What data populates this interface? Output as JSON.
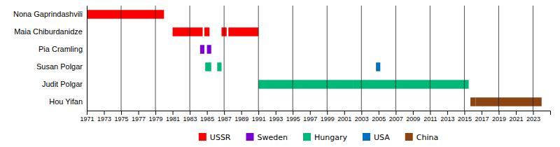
{
  "chart_data": {
    "type": "gantt",
    "orientation": "horizontal",
    "categories": [
      "Nona Gaprindashvili",
      "Maia Chiburdanidze",
      "Pia Cramling",
      "Susan Polgar",
      "Judit Polgar",
      "Hou Yifan"
    ],
    "series": [
      {
        "name": "USSR",
        "color": "#ff0000",
        "categories": [
          "Nona Gaprindashvili",
          "Nona Gaprindashvili",
          "Maia Chiburdanidze",
          "Maia Chiburdanidze",
          "Maia Chiburdanidze",
          "Maia Chiburdanidze"
        ],
        "starts": [
          1971,
          1975,
          1981,
          1984.7,
          1986.7,
          1987.5
        ],
        "ends": [
          1975,
          1980,
          1984.5,
          1985.3,
          1987.3,
          1991
        ]
      },
      {
        "name": "Sweden",
        "color": "#7b00d4",
        "categories": [
          "Pia Cramling",
          "Pia Cramling"
        ],
        "starts": [
          1984.2,
          1985.0
        ],
        "ends": [
          1984.7,
          1985.5
        ]
      },
      {
        "name": "Hungary",
        "color": "#00b878",
        "categories": [
          "Susan Polgar",
          "Susan Polgar",
          "Judit Polgar",
          "Judit Polgar",
          "Judit Polgar"
        ],
        "starts": [
          1984.8,
          1986.2,
          1991,
          2002,
          2015
        ],
        "ends": [
          1985.5,
          1986.7,
          2002,
          2015,
          2015.5
        ]
      },
      {
        "name": "USA",
        "color": "#0070c0",
        "categories": [
          "Susan Polgar"
        ],
        "starts": [
          2004.7
        ],
        "ends": [
          2005.2
        ]
      },
      {
        "name": "China",
        "color": "#8b4513",
        "categories": [
          "Hou Yifan",
          "Hou Yifan"
        ],
        "starts": [
          2015.7,
          2016.3
        ],
        "ends": [
          2016.3,
          2024
        ]
      }
    ],
    "xlim": [
      1971,
      2025
    ],
    "xticks": [
      1971,
      1973,
      1975,
      1977,
      1979,
      1981,
      1983,
      1985,
      1987,
      1989,
      1991,
      1993,
      1995,
      1997,
      1999,
      2001,
      2003,
      2005,
      2007,
      2009,
      2011,
      2013,
      2015,
      2017,
      2019,
      2021,
      2023
    ],
    "gridlines": [
      1971,
      1975,
      1979,
      1983,
      1987,
      1991,
      1995,
      1999,
      2003,
      2007,
      2011,
      2015,
      2019,
      2023
    ],
    "legend": "bottom"
  }
}
